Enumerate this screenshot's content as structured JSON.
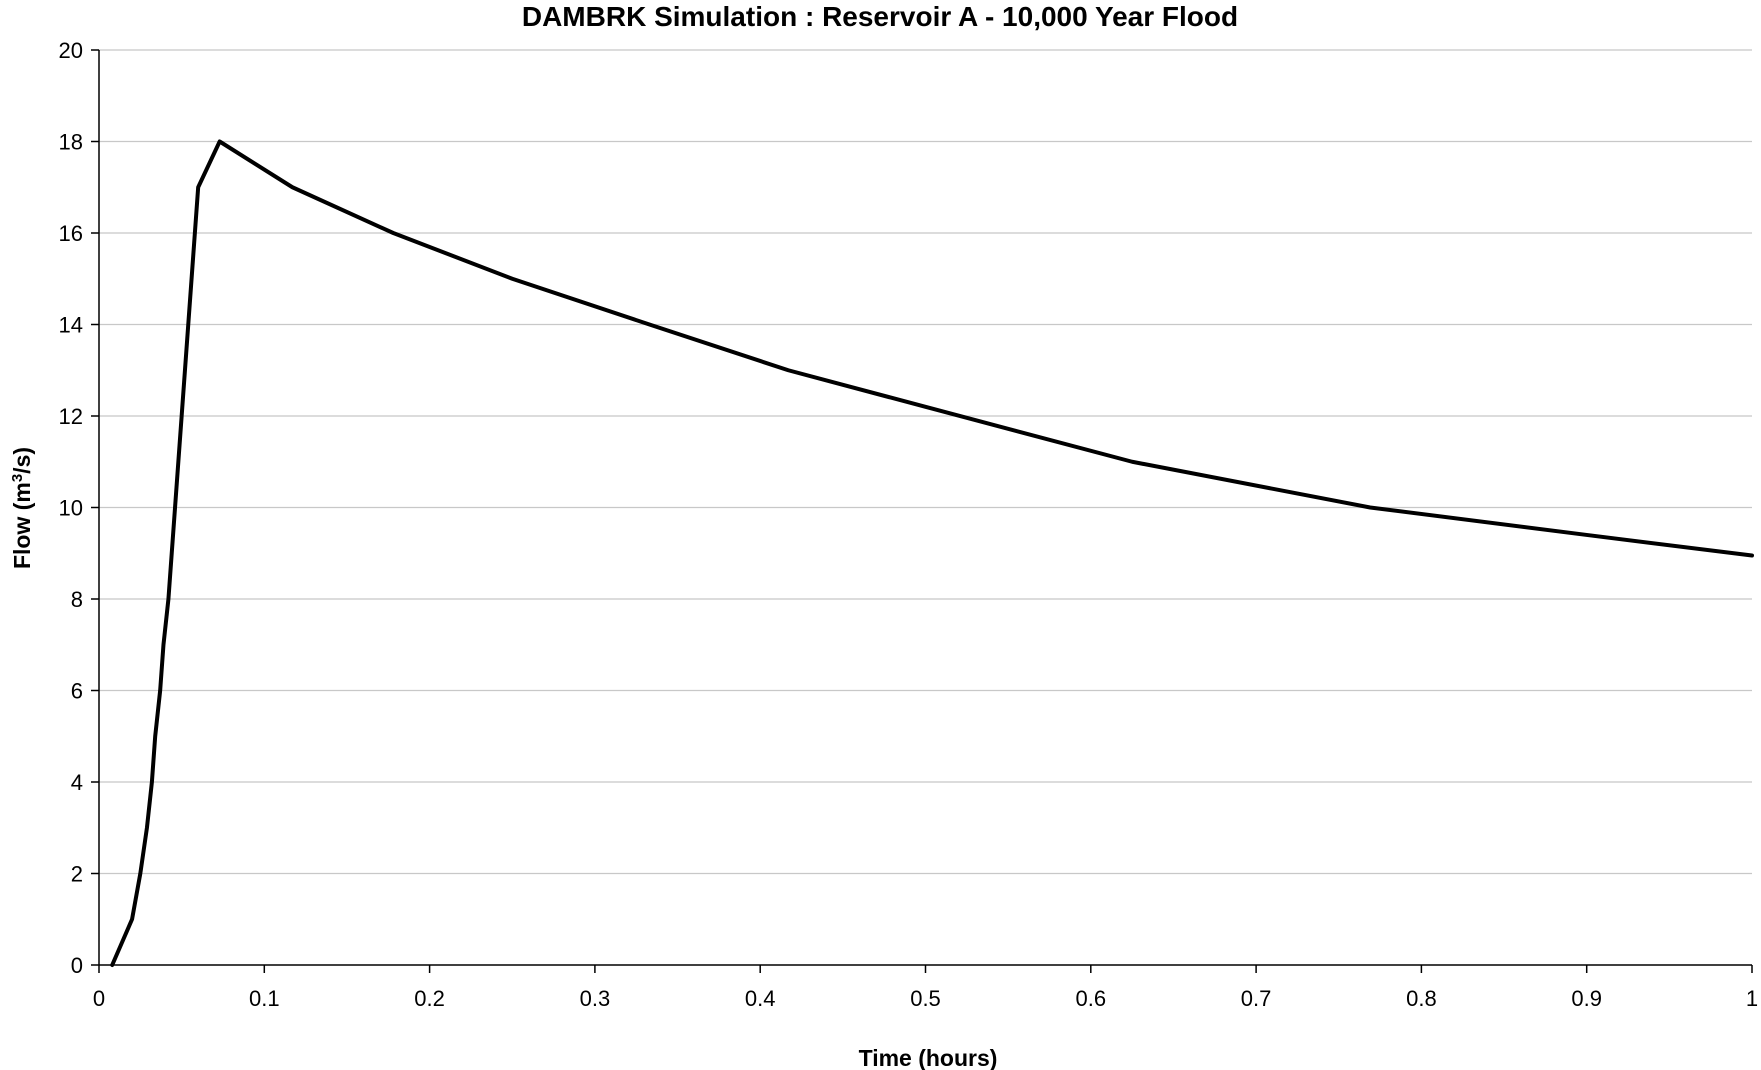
{
  "chart_data": {
    "type": "line",
    "title": "DAMBRK Simulation : Reservoir A - 10,000 Year Flood",
    "xlabel": "Time (hours)",
    "ylabel_main": "Flow (m",
    "ylabel_sup": "3",
    "ylabel_tail": "/s)",
    "xlim": [
      0,
      1
    ],
    "ylim": [
      0,
      20
    ],
    "x_ticks": [
      "0",
      "0.1",
      "0.2",
      "0.3",
      "0.4",
      "0.5",
      "0.6",
      "0.7",
      "0.8",
      "0.9",
      "1"
    ],
    "y_ticks": [
      "0",
      "2",
      "4",
      "6",
      "8",
      "10",
      "12",
      "14",
      "16",
      "18",
      "20"
    ],
    "grid": "horizontal",
    "line_color": "#000000",
    "grid_color": "#c8c8c8",
    "series": [
      {
        "x": [
          0.008,
          0.02,
          0.025,
          0.029,
          0.032,
          0.034,
          0.037,
          0.039,
          0.042,
          0.044,
          0.046,
          0.048,
          0.05,
          0.052,
          0.054,
          0.056,
          0.06,
          0.073,
          0.117,
          0.178,
          0.25,
          0.333,
          0.417,
          0.5,
          0.625,
          0.769,
          0.9,
          1.0
        ],
        "y": [
          0,
          1,
          2,
          3,
          4,
          5,
          6,
          7,
          8,
          9,
          10,
          11,
          12,
          13,
          14,
          15,
          17,
          18,
          17,
          16,
          15,
          14,
          13,
          12.2,
          11,
          10,
          9.4,
          8.95
        ]
      }
    ]
  }
}
